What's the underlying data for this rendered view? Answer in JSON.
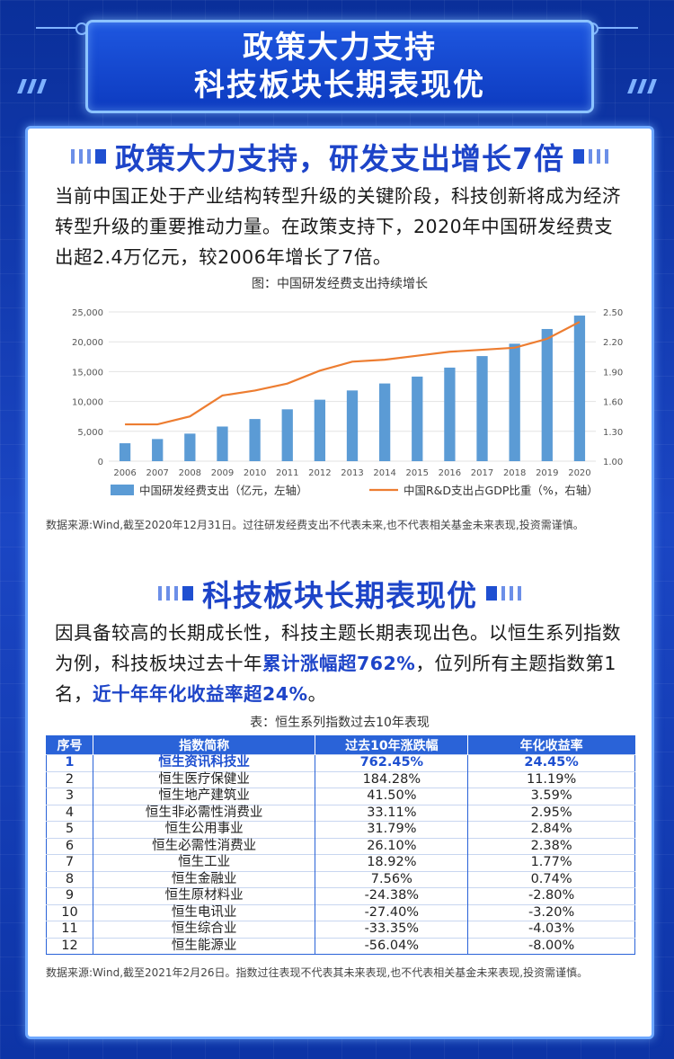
{
  "banner": {
    "line1": "政策大力支持",
    "line2": "科技板块长期表现优"
  },
  "section1": {
    "title": "政策大力支持，研发支出增长7倍",
    "paragraph": "当前中国正处于产业结构转型升级的关键阶段，科技创新将成为经济转型升级的重要推动力量。在政策支持下，2020年中国研发经费支出超2.4万亿元，较2006年增长了7倍。",
    "chart_caption": "图：中国研发经费支出持续增长",
    "source_note": "数据来源:Wind,截至2020年12月31日。过往研发经费支出不代表未来,也不代表相关基金未来表现,投资需谨慎。"
  },
  "section2": {
    "title": "科技板块长期表现优",
    "para_part1": "因具备较高的长期成长性，科技主题长期表现出色。以恒生系列指数为例，科技板块过去十年",
    "para_hl1": "累计涨幅超762%",
    "para_part2": "，位列所有主题指数第1名，",
    "para_hl2": "近十年年化收益率超24%",
    "para_part3": "。",
    "table_caption": "表：恒生系列指数过去10年表现",
    "source_note": "数据来源:Wind,截至2021年2月26日。指数过往表现不代表其未来表现,也不代表相关基金未来表现,投资需谨慎。"
  },
  "table": {
    "headers": [
      "序号",
      "指数简称",
      "过去10年涨跌幅",
      "年化收益率"
    ],
    "rows": [
      [
        "1",
        "恒生资讯科技业",
        "762.45%",
        "24.45%"
      ],
      [
        "2",
        "恒生医疗保健业",
        "184.28%",
        "11.19%"
      ],
      [
        "3",
        "恒生地产建筑业",
        "41.50%",
        "3.59%"
      ],
      [
        "4",
        "恒生非必需性消费业",
        "33.11%",
        "2.95%"
      ],
      [
        "5",
        "恒生公用事业",
        "31.79%",
        "2.84%"
      ],
      [
        "6",
        "恒生必需性消费业",
        "26.10%",
        "2.38%"
      ],
      [
        "7",
        "恒生工业",
        "18.92%",
        "1.77%"
      ],
      [
        "8",
        "恒生金融业",
        "7.56%",
        "0.74%"
      ],
      [
        "9",
        "恒生原材料业",
        "-24.38%",
        "-2.80%"
      ],
      [
        "10",
        "恒生电讯业",
        "-27.40%",
        "-3.20%"
      ],
      [
        "11",
        "恒生综合业",
        "-33.35%",
        "-4.03%"
      ],
      [
        "12",
        "恒生能源业",
        "-56.04%",
        "-8.00%"
      ]
    ]
  },
  "chart_data": {
    "type": "bar",
    "categories": [
      "2006",
      "2007",
      "2008",
      "2009",
      "2010",
      "2011",
      "2012",
      "2013",
      "2014",
      "2015",
      "2016",
      "2017",
      "2018",
      "2019",
      "2020"
    ],
    "series": [
      {
        "name": "中国研发经费支出（亿元，左轴）",
        "type": "bar",
        "axis": "left",
        "values": [
          3003,
          3710,
          4616,
          5802,
          7063,
          8687,
          10298,
          11847,
          13016,
          14170,
          15677,
          17606,
          19678,
          22144,
          24393
        ]
      },
      {
        "name": "中国R&D支出占GDP比重（%，右轴）",
        "type": "line",
        "axis": "right",
        "values": [
          1.37,
          1.37,
          1.45,
          1.66,
          1.71,
          1.78,
          1.91,
          2.0,
          2.02,
          2.06,
          2.1,
          2.12,
          2.14,
          2.23,
          2.4
        ]
      }
    ],
    "left_ticks": [
      "0",
      "5,000",
      "10,000",
      "15,000",
      "20,000",
      "25,000"
    ],
    "right_ticks": [
      "1.00",
      "1.30",
      "1.60",
      "1.90",
      "2.20",
      "2.50"
    ],
    "ylim_left": [
      0,
      25000
    ],
    "ylim_right": [
      1.0,
      2.5
    ],
    "grid": true,
    "legend_position": "bottom",
    "colors": {
      "bar": "#5b9bd5",
      "line": "#ed7d31"
    }
  }
}
